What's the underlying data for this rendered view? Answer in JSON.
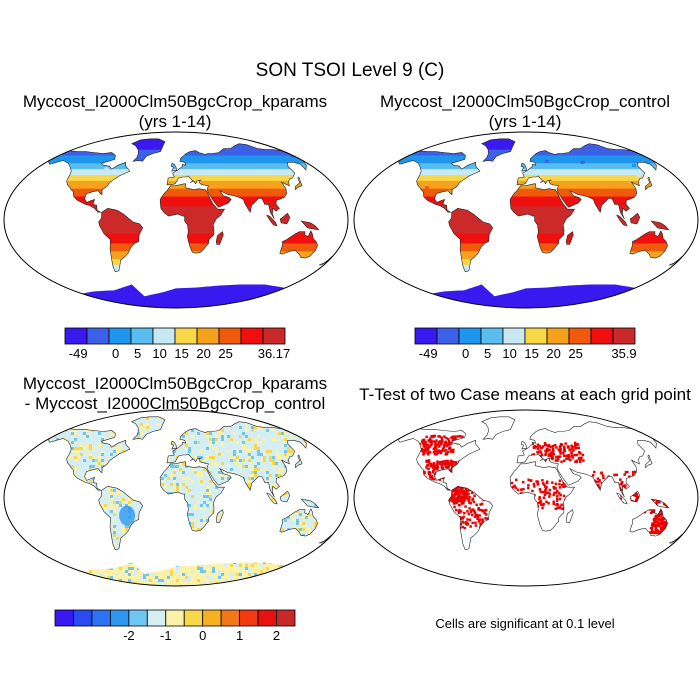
{
  "figure_title": "SON TSOI Level 9 (C)",
  "panels": [
    {
      "title_lines": [
        "Myccost_I2000Clm50BgcCrop_kparams",
        "(yrs 1-14)"
      ],
      "map_id": "abs"
    },
    {
      "title_lines": [
        "Myccost_I2000Clm50BgcCrop_control",
        "(yrs 1-14)"
      ],
      "map_id": "abs"
    },
    {
      "title_lines": [
        "Myccost_I2000Clm50BgcCrop_kparams",
        "- Myccost_I2000Clm50BgcCrop_control"
      ],
      "map_id": "diff"
    },
    {
      "title_lines": [
        "T-Test of two Case means at each grid point"
      ],
      "map_id": "ttest"
    }
  ],
  "colorbars": [
    {
      "colors": [
        "#3a18f0",
        "#3c60e8",
        "#1e96ee",
        "#5abdf0",
        "#c8e8f2",
        "#f8d848",
        "#f6a21c",
        "#f05a0a",
        "#f00e0e",
        "#cc2a2a"
      ],
      "labels": [
        "-49",
        "0",
        "5",
        "10",
        "15",
        "20",
        "25",
        "36.17"
      ]
    },
    {
      "colors": [
        "#3a18f0",
        "#3c60e8",
        "#1e96ee",
        "#5abdf0",
        "#c8e8f2",
        "#f8d848",
        "#f6a21c",
        "#f05a0a",
        "#f00e0e",
        "#cc2a2a"
      ],
      "labels": [
        "-49",
        "0",
        "5",
        "10",
        "15",
        "20",
        "25",
        "35.9"
      ]
    },
    {
      "colors": [
        "#3a18f0",
        "#2a4af2",
        "#2c72f2",
        "#2e98f0",
        "#70c6f2",
        "#d4eef4",
        "#fbf2a8",
        "#f8d848",
        "#f6b020",
        "#f07818",
        "#f03a10",
        "#e81010",
        "#c82828"
      ],
      "labels": [
        "-2",
        "-1",
        "0",
        "1",
        "2"
      ]
    }
  ],
  "significance_note": "Cells are significant at 0.1 level",
  "significant_color": "#ee0000"
}
